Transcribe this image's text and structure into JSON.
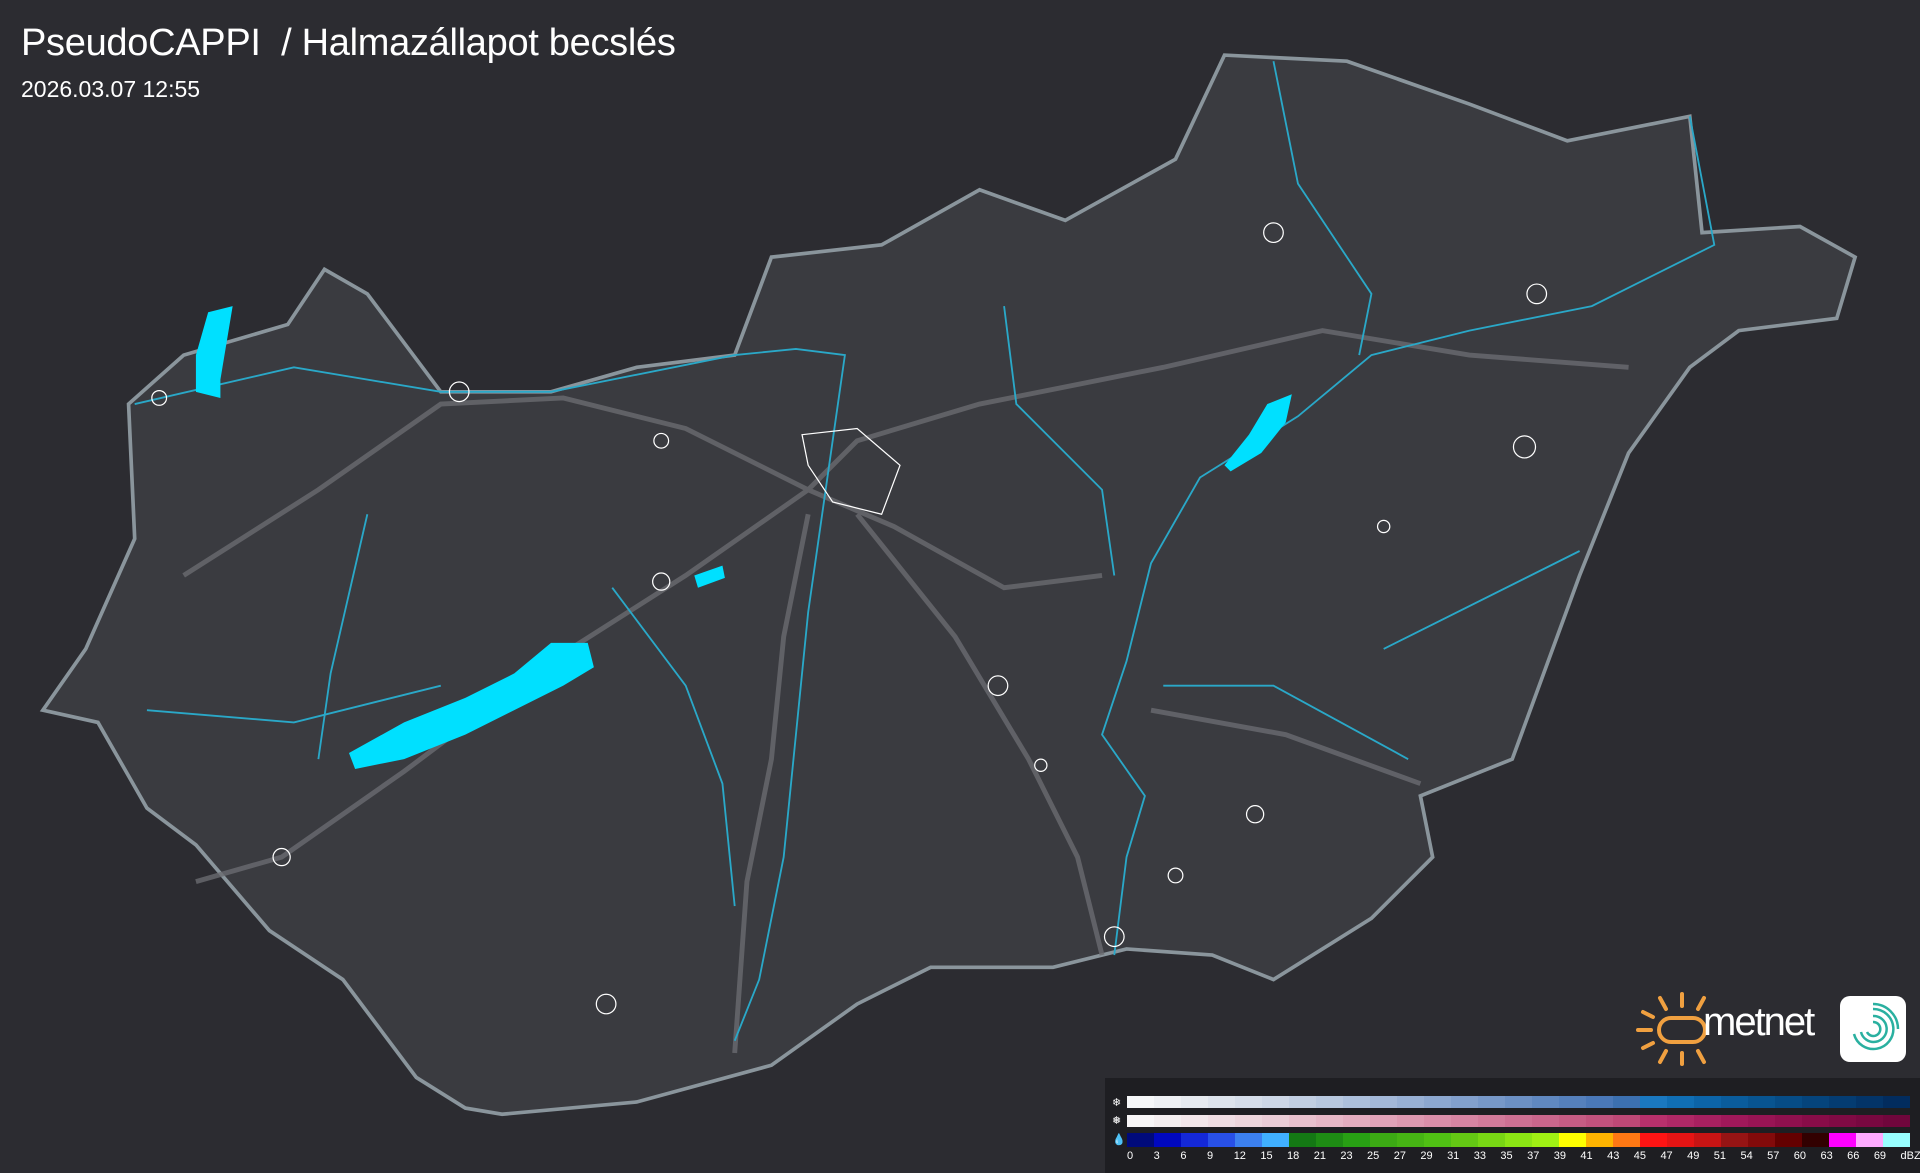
{
  "header": {
    "title": "PseudoCAPPI  / Halmazállapot becslés",
    "timestamp": "2026.03.07 12:55"
  },
  "legend": {
    "rows": [
      {
        "name": "snow",
        "icon": "snowflake-icon",
        "colors": [
          "#f6f7f9",
          "#eef0f4",
          "#e6eaf0",
          "#dde3ec",
          "#d5dde9",
          "#cdd7e6",
          "#c2cfe2",
          "#b8c8df",
          "#adc0dc",
          "#a3b8d8",
          "#98b0d4",
          "#8da8d0",
          "#82a0cc",
          "#7798c8",
          "#6c90c4",
          "#6088c0",
          "#5580bc",
          "#4a78b8",
          "#3c70b0",
          "#1a78c0",
          "#106eb4",
          "#0c64a8",
          "#0a5c9c",
          "#085490",
          "#064c86",
          "#05447c",
          "#043c72",
          "#033468",
          "#022c5e"
        ]
      },
      {
        "name": "wet-snow",
        "icon": "sleet-icon",
        "colors": [
          "#f8f6f7",
          "#f4eef0",
          "#f2e6ea",
          "#efdde3",
          "#edd5dc",
          "#eaccd6",
          "#e8c0cd",
          "#e6b6c6",
          "#e3acbf",
          "#e0a2b8",
          "#dd98b0",
          "#da8ea9",
          "#d684a2",
          "#d27a9a",
          "#ce7093",
          "#ca668c",
          "#c65c84",
          "#c2527d",
          "#be4876",
          "#b8306c",
          "#b02866",
          "#a82060",
          "#a0185a",
          "#981454",
          "#90104e",
          "#880c48",
          "#800a44",
          "#780840",
          "#70063c"
        ]
      },
      {
        "name": "rain",
        "icon": "raindrop-icon",
        "colors": [
          "#000a7a",
          "#0008c0",
          "#1428d8",
          "#2850e8",
          "#3c80f0",
          "#40b0ff",
          "#147814",
          "#1e8c14",
          "#28a014",
          "#3caa14",
          "#46b414",
          "#50c014",
          "#64c814",
          "#78d714",
          "#8ce614",
          "#a0f014",
          "#ffff00",
          "#ffb400",
          "#ff7814",
          "#ff1414",
          "#e61414",
          "#c81414",
          "#961414",
          "#820a0a",
          "#640000",
          "#320000",
          "#ff00ff",
          "#ffaaff",
          "#99ffff"
        ]
      }
    ],
    "labels": [
      "0",
      "3",
      "6",
      "9",
      "12",
      "15",
      "18",
      "21",
      "23",
      "25",
      "27",
      "29",
      "31",
      "33",
      "35",
      "37",
      "39",
      "41",
      "43",
      "45",
      "47",
      "49",
      "51",
      "54",
      "57",
      "60",
      "63",
      "66",
      "69",
      "dBZ"
    ]
  },
  "logo": {
    "brand": "metnet",
    "sun_color": "#f0a040",
    "app_color": "#2ab0a0"
  },
  "map": {
    "water_color": "#00e0ff",
    "border_color": "#8a959c",
    "river_color": "#2aa8c8",
    "land_color": "#3a3b40"
  }
}
